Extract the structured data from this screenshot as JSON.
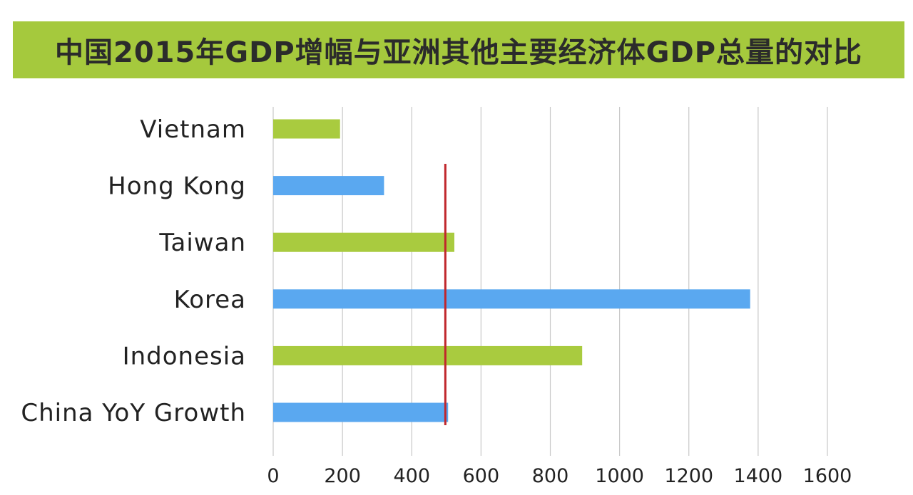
{
  "title": "中国2015年GDP增幅与亚洲其他主要经济体GDP总量的对比",
  "colors": {
    "banner": "#a5c93d",
    "green_bar": "#a9cb3f",
    "blue_bar": "#5aa8f0",
    "reference_line": "#c0262c",
    "grid": "#c8c8c8",
    "text": "#222222"
  },
  "chart_data": {
    "type": "bar",
    "orientation": "horizontal",
    "categories": [
      "Vietnam",
      "Hong Kong",
      "Taiwan",
      "Korea",
      "Indonesia",
      "China YoY Growth"
    ],
    "values": [
      193,
      320,
      523,
      1377,
      892,
      505
    ],
    "bar_colors": [
      "green",
      "blue",
      "green",
      "blue",
      "green",
      "blue"
    ],
    "xlim": [
      0,
      1600
    ],
    "x_ticks": [
      "0",
      "200",
      "400",
      "600",
      "800",
      "1000",
      "1200",
      "1400",
      "1600"
    ],
    "reference_line": 497,
    "grid": true,
    "legend": "none"
  }
}
